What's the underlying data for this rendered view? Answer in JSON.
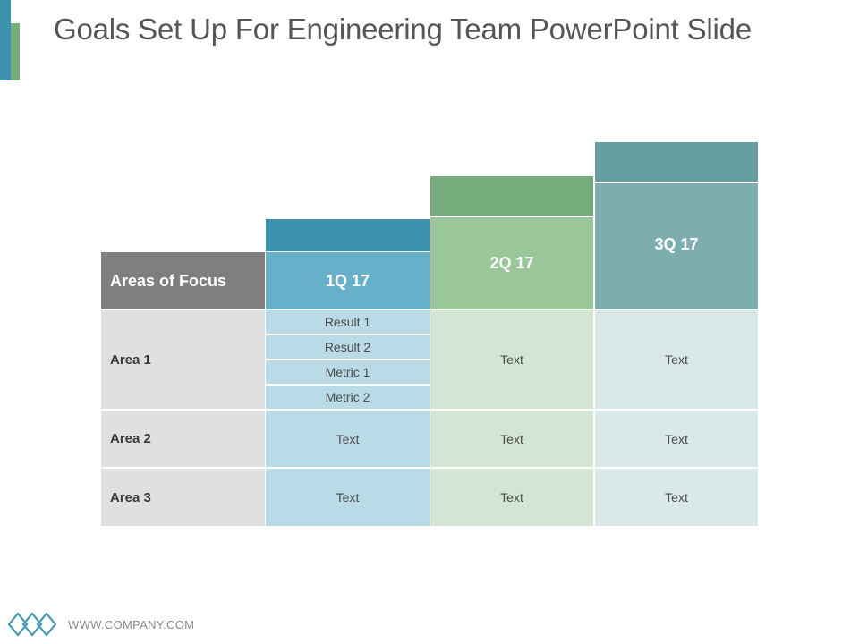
{
  "slide": {
    "title": "Goals Set Up For Engineering Team PowerPoint Slide",
    "footer": "WWW.COMPANY.COM"
  },
  "table": {
    "focus_header": "Areas of Focus",
    "quarters": [
      "1Q 17",
      "2Q 17",
      "3Q 17"
    ],
    "area1": {
      "label": "Area 1",
      "q1_items": [
        "Result 1",
        "Result 2",
        "Metric 1",
        "Metric 2"
      ],
      "q2": "Text",
      "q3": "Text"
    },
    "area2": {
      "label": "Area 2",
      "q1": "Text",
      "q2": "Text",
      "q3": "Text"
    },
    "area3": {
      "label": "Area 3",
      "q1": "Text",
      "q2": "Text",
      "q3": "Text"
    }
  },
  "colors": {
    "q1_dark": "#3d93ad",
    "q1_header": "#67b0c9",
    "q1_cell": "#b8dbe7",
    "q2_dark": "#76ab7b",
    "q2_header": "#9ac79a",
    "q2_cell": "#d3e5d3",
    "q3_dark": "#649ea1",
    "q3_header": "#7eadaf",
    "q3_cell": "#dae8e8",
    "focus_header": "#7f7f7f",
    "area_cell": "#e0e0e0"
  }
}
